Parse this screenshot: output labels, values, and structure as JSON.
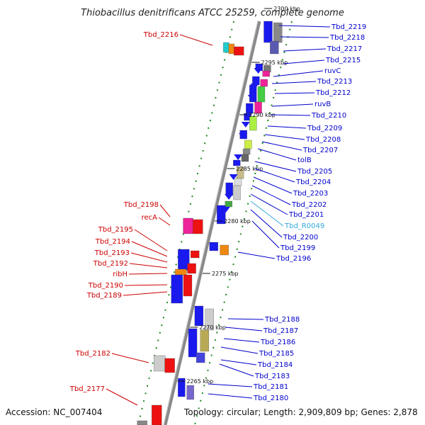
{
  "title": "Thiobacillus denitrificans ATCC 25259, complete genome",
  "footer": {
    "accession": "Accession: NC_007404",
    "topology": "Topology: circular; Length: 2,909,809 bp; Genes: 2,878"
  },
  "colors": {
    "backbone": "#8a8a8a",
    "tick": "#1a8a1a",
    "left_label": "#cc0000",
    "right_label": "#0000cc",
    "rna_label": "#33aadd"
  },
  "kbp_marks": [
    {
      "text": "2300 kbp"
    },
    {
      "text": "2295 kbp"
    },
    {
      "text": "2290 kbp"
    },
    {
      "text": "2285 kbp"
    },
    {
      "text": "2280 kbp"
    },
    {
      "text": "2275 kbp"
    },
    {
      "text": "2270 kbp"
    },
    {
      "text": "2265 kbp"
    }
  ],
  "left_labels": [
    {
      "text": "Tbd_2216"
    },
    {
      "text": "Tbd_2198"
    },
    {
      "text": "recA"
    },
    {
      "text": "Tbd_2195"
    },
    {
      "text": "Tbd_2194"
    },
    {
      "text": "Tbd_2193"
    },
    {
      "text": "Tbd_2192"
    },
    {
      "text": "ribH"
    },
    {
      "text": "Tbd_2190"
    },
    {
      "text": "Tbd_2189"
    },
    {
      "text": "Tbd_2182"
    },
    {
      "text": "Tbd_2177"
    }
  ],
  "right_labels": [
    {
      "text": "Tbd_2219"
    },
    {
      "text": "Tbd_2218"
    },
    {
      "text": "Tbd_2217"
    },
    {
      "text": "Tbd_2215"
    },
    {
      "text": "ruvC"
    },
    {
      "text": "Tbd_2213"
    },
    {
      "text": "Tbd_2212"
    },
    {
      "text": "ruvB"
    },
    {
      "text": "Tbd_2210"
    },
    {
      "text": "Tbd_2209"
    },
    {
      "text": "Tbd_2208"
    },
    {
      "text": "Tbd_2207"
    },
    {
      "text": "tolB"
    },
    {
      "text": "Tbd_2205"
    },
    {
      "text": "Tbd_2204"
    },
    {
      "text": "Tbd_2203"
    },
    {
      "text": "Tbd_2202"
    },
    {
      "text": "Tbd_2201"
    },
    {
      "text": "Tbd_R0049"
    },
    {
      "text": "Tbd_2200"
    },
    {
      "text": "Tbd_2199"
    },
    {
      "text": "Tbd_2196"
    },
    {
      "text": "Tbd_2188"
    },
    {
      "text": "Tbd_2187"
    },
    {
      "text": "Tbd_2186"
    },
    {
      "text": "Tbd_2185"
    },
    {
      "text": "Tbd_2184"
    },
    {
      "text": "Tbd_2183"
    },
    {
      "text": "Tbd_2181"
    },
    {
      "text": "Tbd_2180"
    }
  ]
}
